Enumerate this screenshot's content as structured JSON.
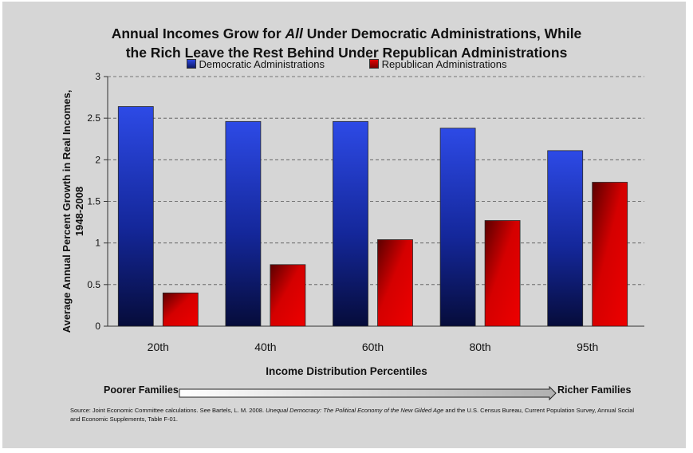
{
  "chart_data": {
    "type": "bar",
    "title_lines": {
      "line1_prefix": "Annual Incomes Grow for ",
      "line1_emphasis": "All",
      "line1_suffix": " Under Democratic Administrations, While",
      "line2": "the Rich Leave the Rest Behind Under Republican Administrations"
    },
    "xlabel": "Income Distribution Percentiles",
    "ylabel_lines": [
      "Average Annual Percent Growth in Real Incomes,",
      "1948-2008"
    ],
    "categories": [
      "20th",
      "40th",
      "60th",
      "80th",
      "95th"
    ],
    "series": [
      {
        "name": "Democratic Administrations",
        "values": [
          2.64,
          2.46,
          2.46,
          2.38,
          2.11
        ],
        "color": "#1a2fb8"
      },
      {
        "name": "Republican Administrations",
        "values": [
          0.4,
          0.74,
          1.04,
          1.27,
          1.73
        ],
        "color": "#c40000"
      }
    ],
    "ylim": [
      0,
      3
    ],
    "yticks": [
      "0",
      "0.5",
      "1",
      "1.5",
      "2",
      "2.5",
      "3"
    ],
    "grid": true,
    "legend_position": "top-center"
  },
  "annotations": {
    "poorer": "Poorer Families",
    "richer": "Richer Families"
  },
  "source": {
    "prefix": "Source: Joint Economic Committee calculations. See Bartels, L. M. 2008. ",
    "book_title": "Unequal Democracy: The Political Economy of the New Gilded Age",
    "suffix": " and the U.S. Census Bureau, Current Population Survey, Annual Social and Economic Supplements, Table F-01."
  }
}
